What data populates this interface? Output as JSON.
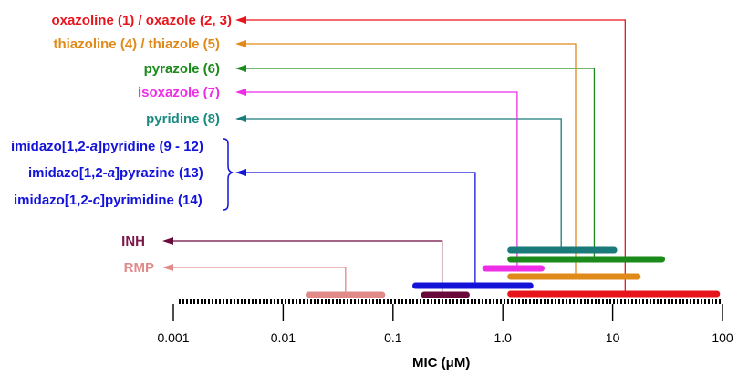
{
  "labels": {
    "oxazoline": {
      "pre": "oxazoline (1) / oxazole (2, 3)",
      "color": "#e8141c"
    },
    "thiazoline": {
      "pre": "thiazoline (4) / thiazole (5)",
      "color": "#e08a1a"
    },
    "pyrazole": {
      "pre": "pyrazole (6)",
      "color": "#1a8a1a"
    },
    "isoxazole": {
      "pre": "isoxazole (7)",
      "color": "#ee2ee6"
    },
    "pyridine": {
      "pre": "pyridine (8)",
      "color": "#1a8a80"
    },
    "imidazo1": {
      "pre": "imidazo[1,2-",
      "ital": "a",
      "post": "]pyridine (9 - 12)",
      "color": "#1414d8"
    },
    "imidazo2": {
      "pre": "imidazo[1,2-",
      "ital": "a",
      "post": "]pyrazine (13)",
      "color": "#1414d8"
    },
    "imidazo3": {
      "pre": "imidazo[1,2-",
      "ital": "c",
      "post": "]pyrimidine (14)",
      "color": "#1414d8"
    },
    "inh": {
      "pre": "INH",
      "color": "#7a1a4a"
    },
    "rmp": {
      "pre": "RMP",
      "color": "#e08a8a"
    }
  },
  "axis": {
    "title_pre": "MIC (",
    "title_mu": "μ",
    "title_post": "M)",
    "scale": "log",
    "range": [
      0.001,
      100
    ],
    "ticks": [
      {
        "value": 0.001,
        "label": "0.001"
      },
      {
        "value": 0.01,
        "label": "0.01"
      },
      {
        "value": 0.1,
        "label": "0.1"
      },
      {
        "value": 1,
        "label": "1.0"
      },
      {
        "value": 10,
        "label": "10"
      },
      {
        "value": 100,
        "label": "100"
      }
    ]
  },
  "ranges": [
    {
      "id": "pyridine",
      "color": "#1a7a7a",
      "min": 1.1,
      "max": 11,
      "pointer": 3.4,
      "target": "pyridine"
    },
    {
      "id": "pyrazole",
      "color": "#1a8a1a",
      "min": 1.1,
      "max": 30,
      "pointer": 6.8,
      "target": "pyrazole"
    },
    {
      "id": "isoxazole",
      "color": "#ee2ee6",
      "min": 0.65,
      "max": 2.4,
      "pointer": 1.35,
      "target": "isoxazole"
    },
    {
      "id": "thiazole",
      "color": "#e08a1a",
      "min": 1.1,
      "max": 18,
      "pointer": 4.6,
      "target": "thiazoline"
    },
    {
      "id": "imidazo",
      "color": "#1414d8",
      "min": 0.15,
      "max": 1.9,
      "pointer": 0.56,
      "target": "imidazo2"
    },
    {
      "id": "inh",
      "color": "#6a0a3a",
      "min": 0.18,
      "max": 0.5,
      "pointer": 0.28,
      "target": "inh"
    },
    {
      "id": "rmp",
      "color": "#e08a8a",
      "min": 0.016,
      "max": 0.085,
      "pointer": 0.037,
      "target": "rmp"
    },
    {
      "id": "oxazole",
      "color": "#e8141c",
      "min": 1.1,
      "max": 95,
      "pointer": 13,
      "target": "oxazoline"
    }
  ]
}
